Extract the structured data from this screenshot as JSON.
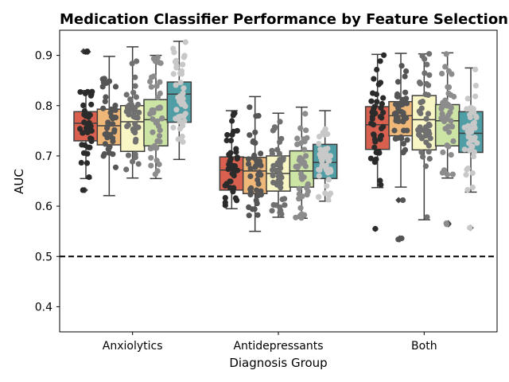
{
  "chart_data": {
    "type": "boxplot",
    "title": "Medication Classifier Performance by Feature Selection",
    "xlabel": "Diagnosis Group",
    "ylabel": "AUC",
    "ylim": [
      0.35,
      0.95
    ],
    "yticks": [
      "0.4",
      "0.5",
      "0.6",
      "0.7",
      "0.8",
      "0.9"
    ],
    "categories": [
      "Anxiolytics",
      "Antidepressants",
      "Both"
    ],
    "reference_line": {
      "y": 0.5,
      "style": "dashed",
      "color": "#000000"
    },
    "grid": false,
    "legend": "none",
    "series": [
      {
        "color": "#d9604f",
        "point_color": "#2b2b2b",
        "boxes": [
          {
            "whisker_low": 0.655,
            "q1": 0.73,
            "median": 0.765,
            "q3": 0.788,
            "whisker_high": 0.83,
            "outliers": [
              0.908,
              0.907,
              0.632
            ]
          },
          {
            "whisker_low": 0.595,
            "q1": 0.632,
            "median": 0.672,
            "q3": 0.698,
            "whisker_high": 0.79,
            "outliers": []
          },
          {
            "whisker_low": 0.637,
            "q1": 0.713,
            "median": 0.762,
            "q3": 0.798,
            "whisker_high": 0.902,
            "outliers": [
              0.555
            ]
          }
        ]
      },
      {
        "color": "#f0b878",
        "point_color": "#555555",
        "boxes": [
          {
            "whisker_low": 0.621,
            "q1": 0.722,
            "median": 0.76,
            "q3": 0.793,
            "whisker_high": 0.898,
            "outliers": []
          },
          {
            "whisker_low": 0.55,
            "q1": 0.625,
            "median": 0.67,
            "q3": 0.697,
            "whisker_high": 0.818,
            "outliers": []
          },
          {
            "whisker_low": 0.638,
            "q1": 0.74,
            "median": 0.78,
            "q3": 0.808,
            "whisker_high": 0.904,
            "outliers": [
              0.612,
              0.536,
              0.534
            ]
          }
        ]
      },
      {
        "color": "#f8f6c4",
        "point_color": "#707070",
        "boxes": [
          {
            "whisker_low": 0.656,
            "q1": 0.709,
            "median": 0.768,
            "q3": 0.8,
            "whisker_high": 0.917,
            "outliers": []
          },
          {
            "whisker_low": 0.578,
            "q1": 0.63,
            "median": 0.665,
            "q3": 0.7,
            "whisker_high": 0.785,
            "outliers": []
          },
          {
            "whisker_low": 0.573,
            "q1": 0.712,
            "median": 0.772,
            "q3": 0.82,
            "whisker_high": 0.903,
            "outliers": []
          }
        ]
      },
      {
        "color": "#cce5a4",
        "point_color": "#8c8c8c",
        "boxes": [
          {
            "whisker_low": 0.655,
            "q1": 0.72,
            "median": 0.772,
            "q3": 0.812,
            "whisker_high": 0.9,
            "outliers": []
          },
          {
            "whisker_low": 0.576,
            "q1": 0.638,
            "median": 0.67,
            "q3": 0.71,
            "whisker_high": 0.797,
            "outliers": []
          },
          {
            "whisker_low": 0.656,
            "q1": 0.72,
            "median": 0.77,
            "q3": 0.802,
            "whisker_high": 0.905,
            "outliers": [
              0.566,
              0.564
            ]
          }
        ]
      },
      {
        "color": "#4f9ea5",
        "point_color": "#c8c8c8",
        "boxes": [
          {
            "whisker_low": 0.693,
            "q1": 0.767,
            "median": 0.823,
            "q3": 0.847,
            "whisker_high": 0.928,
            "outliers": []
          },
          {
            "whisker_low": 0.61,
            "q1": 0.655,
            "median": 0.687,
            "q3": 0.723,
            "whisker_high": 0.79,
            "outliers": []
          },
          {
            "whisker_low": 0.628,
            "q1": 0.707,
            "median": 0.745,
            "q3": 0.788,
            "whisker_high": 0.875,
            "outliers": [
              0.557
            ]
          }
        ]
      }
    ]
  }
}
